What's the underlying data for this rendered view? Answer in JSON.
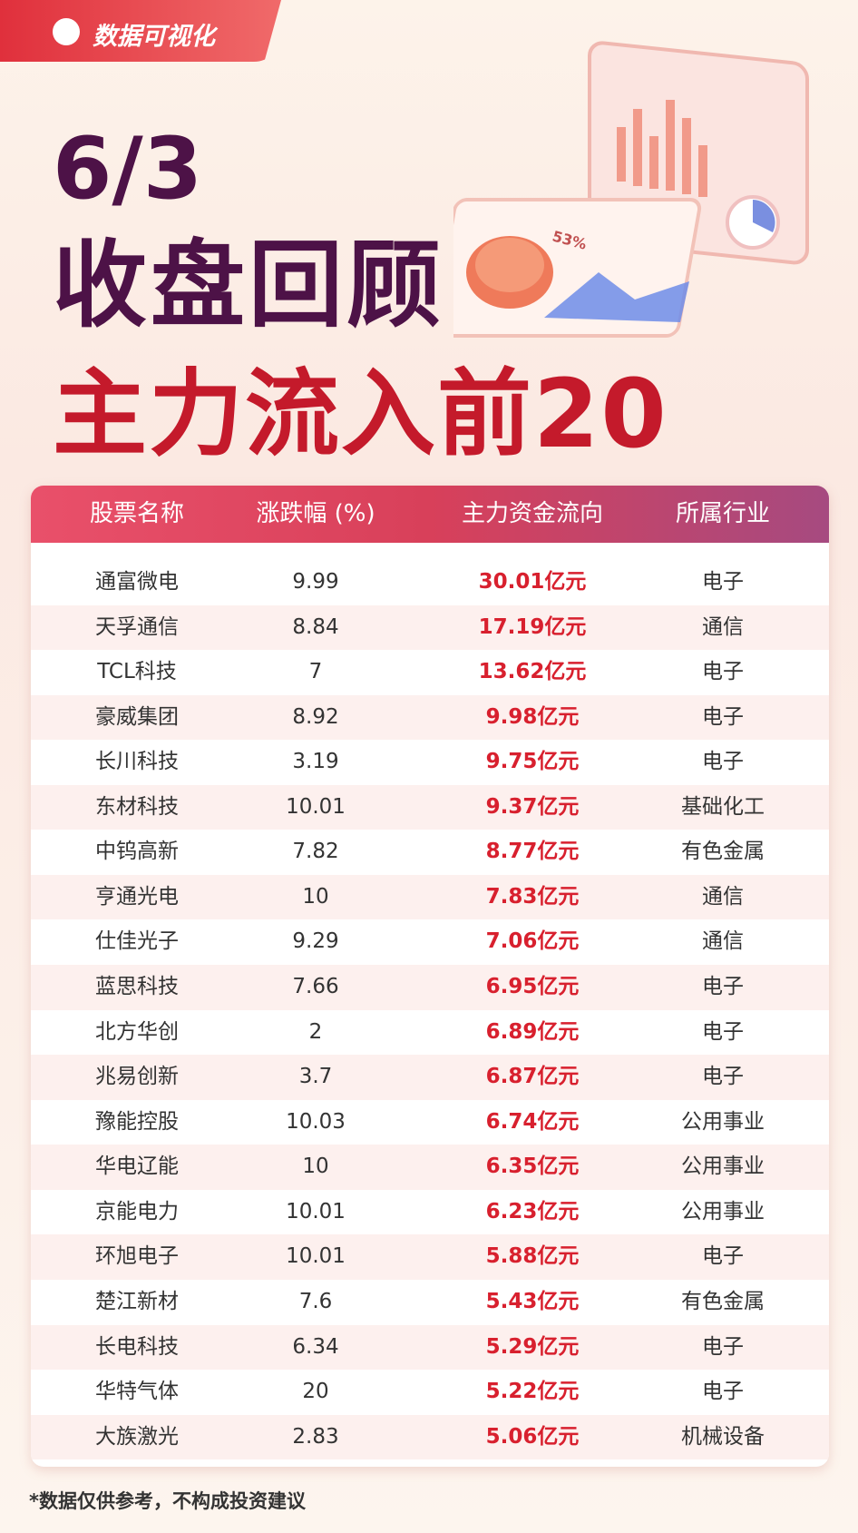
{
  "header": {
    "badge": "数据可视化",
    "date": "6/3",
    "title": "收盘回顾",
    "subtitle": "主力流入前20"
  },
  "illustration": {
    "label": "53%"
  },
  "table": {
    "columns": [
      "股票名称",
      "涨跌幅 (%)",
      "主力资金流向",
      "所属行业"
    ],
    "rows": [
      [
        "通富微电",
        "9.99",
        "30.01亿元",
        "电子"
      ],
      [
        "天孚通信",
        "8.84",
        "17.19亿元",
        "通信"
      ],
      [
        "TCL科技",
        "7",
        "13.62亿元",
        "电子"
      ],
      [
        "豪威集团",
        "8.92",
        "9.98亿元",
        "电子"
      ],
      [
        "长川科技",
        "3.19",
        "9.75亿元",
        "电子"
      ],
      [
        "东材科技",
        "10.01",
        "9.37亿元",
        "基础化工"
      ],
      [
        "中钨高新",
        "7.82",
        "8.77亿元",
        "有色金属"
      ],
      [
        "亨通光电",
        "10",
        "7.83亿元",
        "通信"
      ],
      [
        "仕佳光子",
        "9.29",
        "7.06亿元",
        "通信"
      ],
      [
        "蓝思科技",
        "7.66",
        "6.95亿元",
        "电子"
      ],
      [
        "北方华创",
        "2",
        "6.89亿元",
        "电子"
      ],
      [
        "兆易创新",
        "3.7",
        "6.87亿元",
        "电子"
      ],
      [
        "豫能控股",
        "10.03",
        "6.74亿元",
        "公用事业"
      ],
      [
        "华电辽能",
        "10",
        "6.35亿元",
        "公用事业"
      ],
      [
        "京能电力",
        "10.01",
        "6.23亿元",
        "公用事业"
      ],
      [
        "环旭电子",
        "10.01",
        "5.88亿元",
        "电子"
      ],
      [
        "楚江新材",
        "7.6",
        "5.43亿元",
        "有色金属"
      ],
      [
        "长电科技",
        "6.34",
        "5.29亿元",
        "电子"
      ],
      [
        "华特气体",
        "20",
        "5.22亿元",
        "电子"
      ],
      [
        "大族激光",
        "2.83",
        "5.06亿元",
        "机械设备"
      ]
    ]
  },
  "footer": {
    "note": "*数据仅供参考，不构成投资建议"
  }
}
